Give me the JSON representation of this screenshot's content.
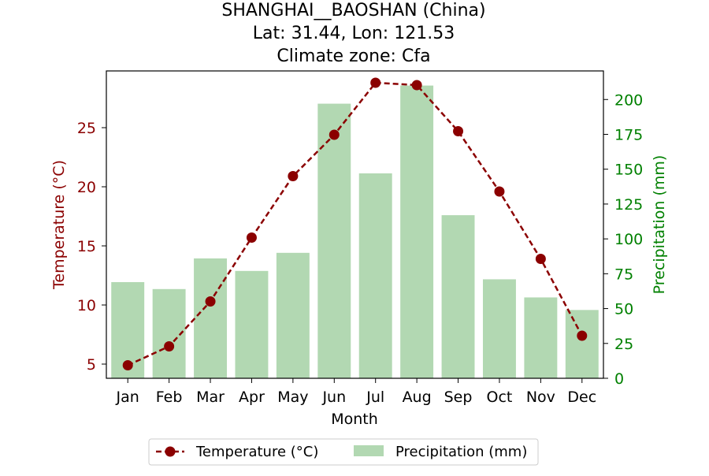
{
  "chart_data": {
    "type": "bar+line",
    "title": [
      "SHANGHAI__BAOSHAN (China)",
      "Lat: 31.44, Lon: 121.53",
      "Climate zone: Cfa"
    ],
    "xlabel": "Month",
    "categories": [
      "Jan",
      "Feb",
      "Mar",
      "Apr",
      "May",
      "Jun",
      "Jul",
      "Aug",
      "Sep",
      "Oct",
      "Nov",
      "Dec"
    ],
    "temperature": {
      "name": "Temperature (°C)",
      "axis_label": "Temperature (°C)",
      "color": "#8b0000",
      "values": [
        4.9,
        6.5,
        10.3,
        15.7,
        20.9,
        24.4,
        28.8,
        28.6,
        24.7,
        19.6,
        13.9,
        7.4
      ],
      "ylim": [
        3.8,
        29.8
      ],
      "ticks": [
        5,
        10,
        15,
        20,
        25
      ]
    },
    "precipitation": {
      "name": "Precipitation (mm)",
      "axis_label": "Precipitation (mm)",
      "color": "#b2d8b2",
      "axis_color": "#008000",
      "values": [
        69,
        64,
        86,
        77,
        90,
        197,
        147,
        210,
        117,
        71,
        58,
        49
      ],
      "ylim": [
        0,
        220.5
      ],
      "ticks": [
        0,
        25,
        50,
        75,
        100,
        125,
        150,
        175,
        200
      ]
    },
    "legend": {
      "placement": "bottom-center",
      "items": [
        "Temperature (°C)",
        "Precipitation (mm)"
      ]
    },
    "grid": false
  }
}
